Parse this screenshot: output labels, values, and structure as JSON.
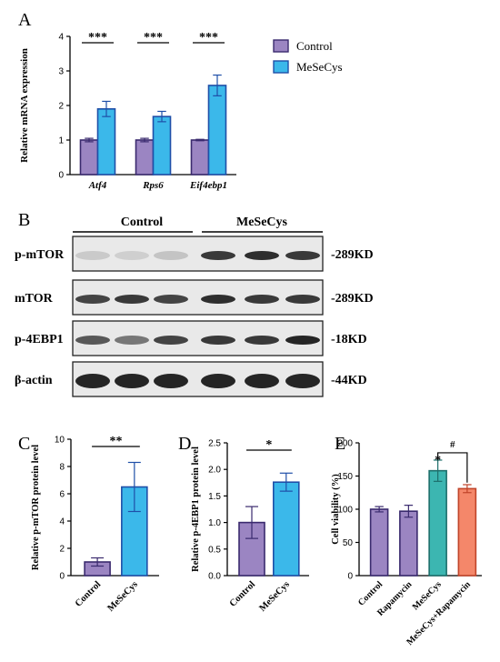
{
  "panels": {
    "a": "A",
    "b": "B",
    "c": "C",
    "d": "D",
    "e": "E"
  },
  "colors": {
    "control": "#9b85c2",
    "control_stroke": "#3a2a6e",
    "mesecys": "#3bb8ea",
    "mesecys_stroke": "#1f4fa8",
    "teal": "#3cb6b1",
    "teal_stroke": "#1d6f6b",
    "salmon": "#f4876a",
    "salmon_stroke": "#c0442a"
  },
  "panel_b": {
    "group_labels": [
      "Control",
      "MeSeCys"
    ],
    "rows": [
      {
        "label": "p-mTOR",
        "size": "-289KD"
      },
      {
        "label": "mTOR",
        "size": "-289KD"
      },
      {
        "label": "p-4EBP1",
        "size": "-18KD"
      },
      {
        "label": "β-actin",
        "size": "-44KD"
      }
    ]
  },
  "chart_data": [
    {
      "panel": "A",
      "type": "bar",
      "ylabel": "Relative mRNA expression",
      "ylim": [
        0,
        4
      ],
      "yticks": [
        "0",
        "1",
        "2",
        "3",
        "4"
      ],
      "categories": [
        "Atf4",
        "Rps6",
        "Eif4ebp1"
      ],
      "series": [
        {
          "name": "Control",
          "values": [
            1.0,
            1.0,
            1.0
          ],
          "errors": [
            0.05,
            0.05,
            0.02
          ]
        },
        {
          "name": "MeSeCys",
          "values": [
            1.9,
            1.68,
            2.58
          ],
          "errors": [
            0.22,
            0.15,
            0.3
          ]
        }
      ],
      "significance": [
        "***",
        "***",
        "***"
      ],
      "legend": "right"
    },
    {
      "panel": "C",
      "type": "bar",
      "ylabel": "Relative p-mTOR protein level",
      "ylim": [
        0,
        10
      ],
      "yticks": [
        "0",
        "2",
        "4",
        "6",
        "8",
        "10"
      ],
      "categories": [
        "Control",
        "MeSeCys"
      ],
      "values": [
        1.0,
        6.5
      ],
      "errors": [
        0.3,
        1.8
      ],
      "significance": "**"
    },
    {
      "panel": "D",
      "type": "bar",
      "ylabel": "Relative p-4EBP1 protein level",
      "ylim": [
        0,
        2.5
      ],
      "yticks": [
        "0.0",
        "0.5",
        "1.0",
        "1.5",
        "2.0",
        "2.5"
      ],
      "categories": [
        "Control",
        "MeSeCys"
      ],
      "values": [
        1.0,
        1.76
      ],
      "errors": [
        0.3,
        0.17
      ],
      "significance": "*"
    },
    {
      "panel": "E",
      "type": "bar",
      "ylabel": "Cell viability (%)",
      "ylim": [
        0,
        200
      ],
      "yticks": [
        "0",
        "50",
        "100",
        "150",
        "200"
      ],
      "categories": [
        "Control",
        "Rapamycin",
        "MeSeCys",
        "MeSeCys+Rapamycin"
      ],
      "values": [
        100,
        97,
        158,
        131
      ],
      "errors": [
        4,
        9,
        16,
        6
      ],
      "significance": {
        "star": "*",
        "hash": "#"
      }
    }
  ]
}
